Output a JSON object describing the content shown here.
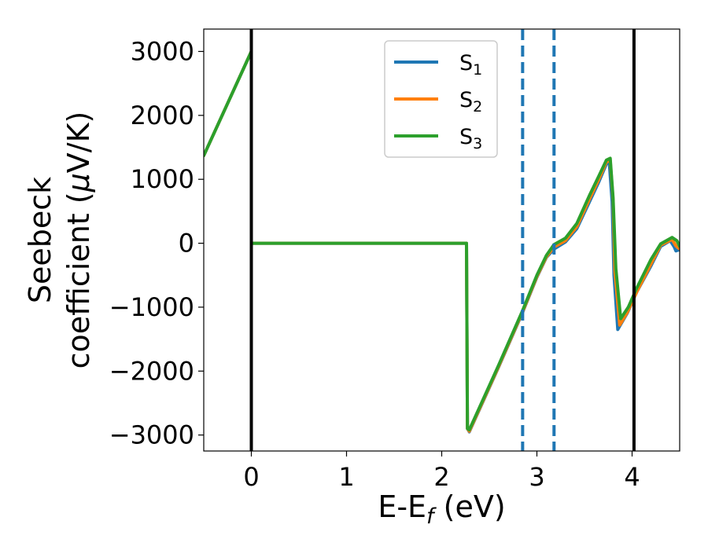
{
  "chart_data": {
    "type": "line",
    "xlabel": "E-E",
    "xlabel_sub": "f",
    "xlabel_unit": " (eV)",
    "ylabel_line1": "Seebeck",
    "ylabel_line2_pre": "coefficient  (",
    "ylabel_mu": "μ",
    "ylabel_line2_post": "V/K)",
    "xlim": [
      -0.5,
      4.5
    ],
    "ylim": [
      -3250,
      3350
    ],
    "xticks": [
      0,
      1,
      2,
      3,
      4
    ],
    "xtick_labels": [
      "0",
      "1",
      "2",
      "3",
      "4"
    ],
    "yticks": [
      3000,
      2000,
      1000,
      0,
      -1000,
      -2000,
      -3000
    ],
    "ytick_labels": [
      "3000",
      "2000",
      "1000",
      "0",
      "−1000",
      "−2000",
      "−3000"
    ],
    "grid": false,
    "legend_position": "top-center",
    "vlines_solid": [
      0.0,
      4.02
    ],
    "vlines_dashed": [
      2.85,
      3.18
    ],
    "vline_solid_color": "#000000",
    "vline_dashed_color": "#1f77b4",
    "series": [
      {
        "name": "S",
        "sub": "1",
        "color": "#1f77b4",
        "points": [
          [
            -0.5,
            1370
          ],
          [
            0.0,
            3000
          ],
          [
            0.0,
            0
          ],
          [
            2.26,
            0
          ],
          [
            2.27,
            -2900
          ],
          [
            2.29,
            -2950
          ],
          [
            2.6,
            -1930
          ],
          [
            2.85,
            -1080
          ],
          [
            3.0,
            -530
          ],
          [
            3.1,
            -220
          ],
          [
            3.18,
            -90
          ],
          [
            3.3,
            20
          ],
          [
            3.42,
            230
          ],
          [
            3.55,
            640
          ],
          [
            3.65,
            960
          ],
          [
            3.73,
            1240
          ],
          [
            3.76,
            1260
          ],
          [
            3.79,
            650
          ],
          [
            3.81,
            -500
          ],
          [
            3.85,
            -1350
          ],
          [
            3.95,
            -1090
          ],
          [
            4.05,
            -760
          ],
          [
            4.2,
            -350
          ],
          [
            4.3,
            -50
          ],
          [
            4.4,
            40
          ],
          [
            4.44,
            -50
          ],
          [
            4.46,
            -120
          ],
          [
            4.5,
            -100
          ]
        ]
      },
      {
        "name": "S",
        "sub": "2",
        "color": "#ff7f0e",
        "points": [
          [
            -0.5,
            1370
          ],
          [
            0.0,
            3000
          ],
          [
            0.0,
            0
          ],
          [
            2.26,
            0
          ],
          [
            2.27,
            -2900
          ],
          [
            2.29,
            -2940
          ],
          [
            2.6,
            -1920
          ],
          [
            2.85,
            -1070
          ],
          [
            3.0,
            -520
          ],
          [
            3.1,
            -210
          ],
          [
            3.18,
            -60
          ],
          [
            3.3,
            40
          ],
          [
            3.42,
            260
          ],
          [
            3.55,
            680
          ],
          [
            3.65,
            1000
          ],
          [
            3.73,
            1270
          ],
          [
            3.77,
            1300
          ],
          [
            3.8,
            680
          ],
          [
            3.82,
            -450
          ],
          [
            3.87,
            -1280
          ],
          [
            3.95,
            -1080
          ],
          [
            4.05,
            -760
          ],
          [
            4.2,
            -320
          ],
          [
            4.3,
            -30
          ],
          [
            4.42,
            60
          ],
          [
            4.46,
            -40
          ],
          [
            4.5,
            -90
          ]
        ]
      },
      {
        "name": "S",
        "sub": "3",
        "color": "#2ca02c",
        "points": [
          [
            -0.5,
            1370
          ],
          [
            0.0,
            3000
          ],
          [
            0.0,
            0
          ],
          [
            2.26,
            0
          ],
          [
            2.27,
            -2900
          ],
          [
            2.29,
            -2920
          ],
          [
            2.6,
            -1900
          ],
          [
            2.85,
            -1050
          ],
          [
            3.0,
            -500
          ],
          [
            3.1,
            -190
          ],
          [
            3.18,
            -20
          ],
          [
            3.3,
            80
          ],
          [
            3.42,
            310
          ],
          [
            3.55,
            740
          ],
          [
            3.65,
            1050
          ],
          [
            3.73,
            1300
          ],
          [
            3.77,
            1330
          ],
          [
            3.8,
            720
          ],
          [
            3.83,
            -400
          ],
          [
            3.88,
            -1180
          ],
          [
            3.96,
            -1000
          ],
          [
            4.05,
            -700
          ],
          [
            4.2,
            -250
          ],
          [
            4.3,
            -10
          ],
          [
            4.42,
            90
          ],
          [
            4.47,
            40
          ],
          [
            4.5,
            -50
          ]
        ]
      }
    ]
  }
}
